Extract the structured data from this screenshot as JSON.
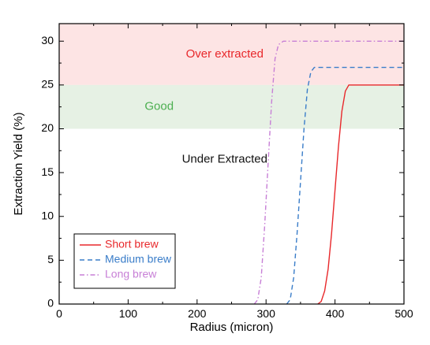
{
  "chart_data": {
    "type": "line",
    "xlabel": "Radius (micron)",
    "ylabel": "Extraction Yield (%)",
    "xlim": [
      0,
      500
    ],
    "ylim": [
      0,
      32
    ],
    "xticks": [
      0,
      100,
      200,
      300,
      400,
      500
    ],
    "yticks": [
      0,
      5,
      10,
      15,
      20,
      25,
      30
    ],
    "grid": false,
    "legend_position": "bottom-left",
    "zones": [
      {
        "label": "Over extracted",
        "from": 25,
        "to": 32,
        "fill": "#fde4e4",
        "text_color": "#e8282b",
        "label_x": 240,
        "label_y": 28.5
      },
      {
        "label": "Good",
        "from": 20,
        "to": 25,
        "fill": "#e6f1e4",
        "text_color": "#4caf50",
        "label_x": 145,
        "label_y": 22.5
      },
      {
        "label": "Under Extracted",
        "from": 0,
        "to": 20,
        "fill": "#ffffff",
        "text_color": "#111111",
        "label_x": 240,
        "label_y": 16.5
      }
    ],
    "series": [
      {
        "name": "Short brew",
        "color": "#e8282b",
        "dash": "",
        "x": [
          375,
          380,
          385,
          390,
          395,
          400,
          405,
          410,
          415,
          420,
          430,
          450,
          500
        ],
        "y": [
          0,
          0.3,
          1.5,
          4,
          8,
          13,
          18,
          22,
          24.3,
          25,
          25,
          25,
          25
        ]
      },
      {
        "name": "Medium brew",
        "color": "#3a7dc9",
        "dash": "6,4",
        "x": [
          330,
          335,
          340,
          345,
          350,
          355,
          360,
          365,
          370,
          380,
          400,
          500
        ],
        "y": [
          0,
          0.5,
          3,
          8,
          14,
          20,
          24.5,
          26.5,
          27,
          27,
          27,
          27
        ]
      },
      {
        "name": "Long brew",
        "color": "#c77fd6",
        "dash": "6,3,1.5,3",
        "x": [
          283,
          288,
          293,
          298,
          303,
          308,
          313,
          318,
          325,
          340,
          500
        ],
        "y": [
          0,
          0.5,
          3,
          9,
          16,
          23,
          28,
          29.6,
          30,
          30,
          30
        ]
      }
    ]
  }
}
